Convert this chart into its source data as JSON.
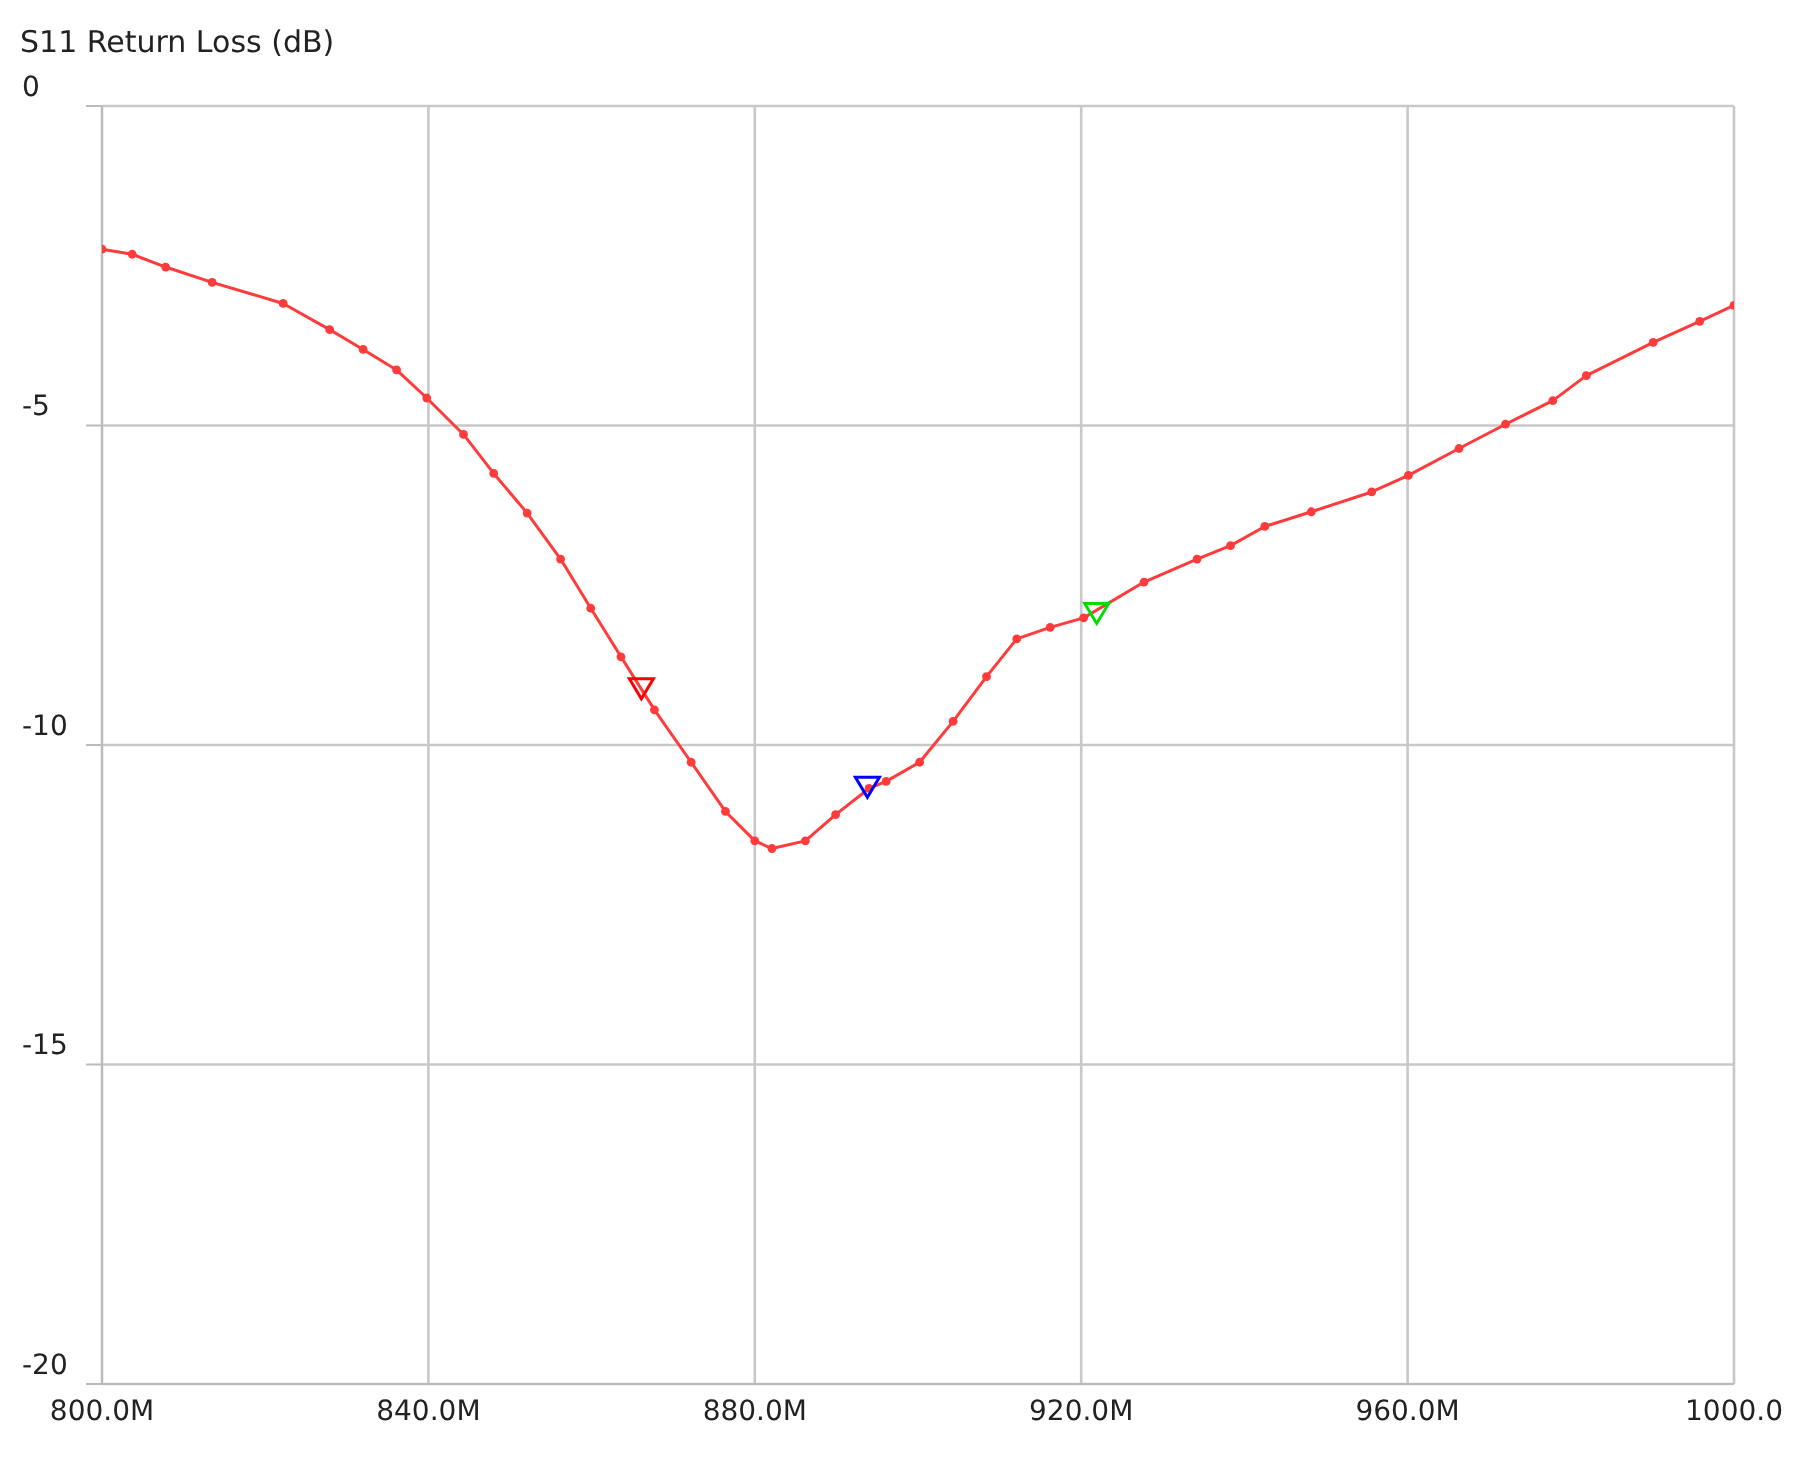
{
  "chart_data": {
    "type": "line",
    "title": "S11 Return Loss (dB)",
    "xlim": [
      800,
      1000
    ],
    "xticks": [
      {
        "value": 800,
        "label": "800.0M"
      },
      {
        "value": 840,
        "label": "840.0M"
      },
      {
        "value": 880,
        "label": "880.0M"
      },
      {
        "value": 920,
        "label": "920.0M"
      },
      {
        "value": 960,
        "label": "960.0M"
      },
      {
        "value": 1000,
        "label": "1000.0"
      }
    ],
    "ylim": [
      -20,
      0
    ],
    "yticks": [
      -20,
      -15,
      -10,
      -5,
      0
    ],
    "grid": true,
    "marker": "circle",
    "line_style": "solid",
    "series": [
      {
        "color": "#ff3b3b",
        "x": [
          800,
          803.7,
          807.8,
          813.5,
          822.2,
          827.9,
          832,
          836.1,
          839.8,
          844.3,
          848,
          852.1,
          856.2,
          859.9,
          863.6,
          867.7,
          872.2,
          876.4,
          880,
          882.1,
          886.2,
          889.9,
          894,
          896.1,
          900.2,
          904.3,
          908.4,
          912.1,
          916.2,
          920.3,
          927.7,
          934.2,
          938.3,
          942.5,
          948.2,
          955.6,
          960.1,
          966.3,
          972,
          977.8,
          981.9,
          990.1,
          995.8,
          1000
        ],
        "values": [
          -2.24,
          -2.32,
          -2.52,
          -2.76,
          -3.09,
          -3.5,
          -3.81,
          -4.13,
          -4.57,
          -5.14,
          -5.75,
          -6.37,
          -7.09,
          -7.86,
          -8.62,
          -9.45,
          -10.27,
          -11.04,
          -11.5,
          -11.62,
          -11.5,
          -11.09,
          -10.68,
          -10.57,
          -10.27,
          -9.63,
          -8.93,
          -8.34,
          -8.16,
          -8.01,
          -7.45,
          -7.09,
          -6.88,
          -6.58,
          -6.35,
          -6.04,
          -5.78,
          -5.36,
          -4.98,
          -4.61,
          -4.22,
          -3.7,
          -3.37,
          -3.12
        ]
      },
      {
        "type": "scatter",
        "marker": "triangle",
        "x": [
          866.1,
          893.8,
          921.9
        ],
        "values": [
          -9.09,
          -10.63,
          -7.91
        ],
        "colors": [
          "#ff0000",
          "#0000ff",
          "#00dd00"
        ]
      }
    ]
  }
}
